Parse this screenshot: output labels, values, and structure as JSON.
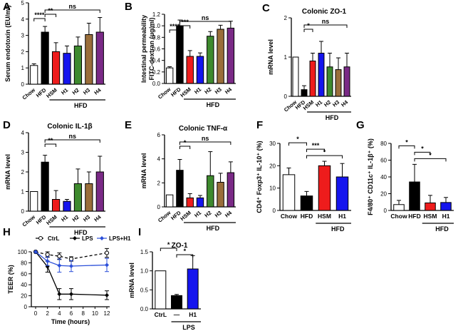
{
  "colors": {
    "white": "#ffffff",
    "black": "#000000",
    "red": "#ee1c1c",
    "blue": "#1515ee",
    "green": "#3e8a2e",
    "olive": "#9a6e3a",
    "purple": "#7a2a86",
    "lps_h1_line": "#2b4fd9"
  },
  "chart_data": [
    {
      "panel": "A",
      "type": "bar",
      "ylabel": "Serum endotoxin (EU/ml)",
      "ylim": [
        0,
        5
      ],
      "yticks": [
        "0",
        "1",
        "2",
        "3",
        "4",
        "5"
      ],
      "categories": [
        "Chow",
        "HFD",
        "HSM",
        "H1",
        "H2",
        "H3",
        "H4"
      ],
      "values": [
        1.15,
        3.2,
        2.0,
        1.9,
        2.35,
        3.05,
        3.2
      ],
      "errors": [
        0.1,
        0.35,
        0.55,
        0.45,
        0.55,
        0.7,
        0.9
      ],
      "fills": [
        "white",
        "black",
        "red",
        "blue",
        "green",
        "olive",
        "purple"
      ],
      "group_label": "HFD",
      "significance": [
        "****",
        "**",
        "ns"
      ]
    },
    {
      "panel": "B",
      "type": "bar",
      "ylabel": "Intestinal permeability FITC-dextran (μg/ml)",
      "ylim": [
        0,
        1.2
      ],
      "yticks": [
        "0.0",
        "0.2",
        "0.4",
        "0.6",
        "0.8",
        "1.0",
        "1.2"
      ],
      "categories": [
        "Chow",
        "HFD",
        "HSM",
        "H1",
        "H2",
        "H3",
        "H4"
      ],
      "values": [
        0.27,
        1.0,
        0.47,
        0.47,
        0.82,
        0.94,
        0.96
      ],
      "errors": [
        0.02,
        0.1,
        0.1,
        0.06,
        0.08,
        0.07,
        0.12
      ],
      "fills": [
        "white",
        "black",
        "red",
        "blue",
        "green",
        "olive",
        "purple"
      ],
      "group_label": "HFD",
      "significance": [
        "****",
        "***",
        "ns"
      ]
    },
    {
      "panel": "C",
      "type": "bar",
      "title": "Colonic ZO-1",
      "ylabel": "mRNA level",
      "ylim": [
        0,
        2
      ],
      "yticks": [
        "0",
        "1",
        "2"
      ],
      "categories": [
        "Chow",
        "HFD",
        "HSM",
        "H1",
        "H2",
        "H3",
        "H4"
      ],
      "values": [
        1.0,
        0.17,
        0.9,
        1.1,
        0.75,
        0.68,
        0.75
      ],
      "errors": [
        0.0,
        0.1,
        0.2,
        0.3,
        0.35,
        0.3,
        0.35
      ],
      "fills": [
        "white",
        "black",
        "red",
        "blue",
        "green",
        "olive",
        "purple"
      ],
      "group_label": "HFD",
      "significance": [
        "*",
        "ns"
      ]
    },
    {
      "panel": "D",
      "type": "bar",
      "title": "Colonic IL-1β",
      "ylabel": "mRNA level",
      "ylim": [
        0,
        4
      ],
      "yticks": [
        "0",
        "1",
        "2",
        "3",
        "4"
      ],
      "categories": [
        "Chow",
        "HFD",
        "HSM",
        "H1",
        "H2",
        "H3",
        "H4"
      ],
      "values": [
        1.0,
        2.5,
        0.6,
        0.5,
        1.4,
        1.4,
        2.0
      ],
      "errors": [
        0.0,
        0.35,
        0.45,
        0.1,
        0.75,
        0.6,
        0.8
      ],
      "fills": [
        "white",
        "black",
        "red",
        "blue",
        "green",
        "olive",
        "purple"
      ],
      "group_label": "HFD",
      "significance": [
        "**",
        "ns"
      ]
    },
    {
      "panel": "E",
      "type": "bar",
      "title": "Colonic TNF-α",
      "ylabel": "mRNA level",
      "ylim": [
        0,
        6
      ],
      "yticks": [
        "0",
        "2",
        "4",
        "6"
      ],
      "categories": [
        "Chow",
        "HFD",
        "HSM",
        "H1",
        "H2",
        "H3",
        "H4"
      ],
      "values": [
        1.0,
        3.05,
        0.75,
        0.75,
        2.6,
        2.05,
        2.85
      ],
      "errors": [
        0.0,
        0.9,
        0.35,
        0.2,
        2.0,
        0.75,
        0.9
      ],
      "fills": [
        "white",
        "black",
        "red",
        "blue",
        "green",
        "olive",
        "purple"
      ],
      "group_label": "HFD",
      "significance": [
        "*",
        "ns"
      ]
    },
    {
      "panel": "F",
      "type": "bar",
      "ylabel": "CD4⁺ Foxp3⁺ IL-10⁺ (%)",
      "ylim": [
        0,
        30
      ],
      "yticks": [
        "0",
        "10",
        "20",
        "30"
      ],
      "categories": [
        "Chow",
        "HFD",
        "HSM",
        "H1"
      ],
      "values": [
        16.0,
        6.5,
        20.0,
        15.0
      ],
      "errors": [
        3.0,
        2.0,
        2.0,
        6.0
      ],
      "fills": [
        "white",
        "black",
        "red",
        "blue"
      ],
      "group_label": "HFD",
      "significance": [
        "*",
        "***",
        "*"
      ]
    },
    {
      "panel": "G",
      "type": "bar",
      "ylabel": "F4/80⁺ CD11c⁺ IL-1β⁺ (%)",
      "ylim": [
        0,
        80
      ],
      "yticks": [
        "0",
        "20",
        "40",
        "60",
        "80"
      ],
      "categories": [
        "Chow",
        "HFD",
        "HSM",
        "H1"
      ],
      "values": [
        7.0,
        34.0,
        9.0,
        9.5
      ],
      "errors": [
        5.0,
        21.0,
        9.0,
        6.0
      ],
      "fills": [
        "white",
        "black",
        "red",
        "blue"
      ],
      "group_label": "HFD",
      "significance": [
        "*",
        "*",
        "*"
      ]
    },
    {
      "panel": "H",
      "type": "line",
      "xlabel": "Time (hours)",
      "ylabel": "TEER (%)",
      "xlim": [
        0,
        12
      ],
      "ylim": [
        0,
        100
      ],
      "xticks": [
        "0",
        "2",
        "4",
        "6",
        "8",
        "10",
        "12"
      ],
      "yticks": [
        "0",
        "20",
        "40",
        "60",
        "80",
        "100"
      ],
      "x": [
        0,
        2,
        4,
        6,
        12
      ],
      "series": [
        {
          "name": "CtrL",
          "values": [
            100,
            95,
            92,
            87,
            98
          ],
          "errors": [
            0,
            5,
            6,
            4,
            8
          ]
        },
        {
          "name": "LPS",
          "values": [
            100,
            73,
            23,
            23,
            21
          ],
          "errors": [
            0,
            10,
            10,
            10,
            8
          ]
        },
        {
          "name": "LPS+H1",
          "values": [
            100,
            83,
            75,
            74,
            76
          ],
          "errors": [
            0,
            8,
            12,
            10,
            12
          ]
        }
      ],
      "legend": "top"
    },
    {
      "panel": "I",
      "type": "bar",
      "title": "ZO-1",
      "ylabel": "mRNA level",
      "ylim": [
        0,
        1.5
      ],
      "yticks": [
        "0.0",
        "0.5",
        "1.0",
        "1.5"
      ],
      "categories": [
        "CtrL",
        "—",
        "H1"
      ],
      "values": [
        1.0,
        0.35,
        1.05
      ],
      "errors": [
        0.0,
        0.03,
        0.35
      ],
      "fills": [
        "white",
        "black",
        "blue"
      ],
      "group_label": "LPS",
      "significance": [
        "*",
        "*"
      ]
    }
  ],
  "panel_letters": [
    "A",
    "B",
    "C",
    "D",
    "E",
    "F",
    "G",
    "H",
    "I"
  ]
}
